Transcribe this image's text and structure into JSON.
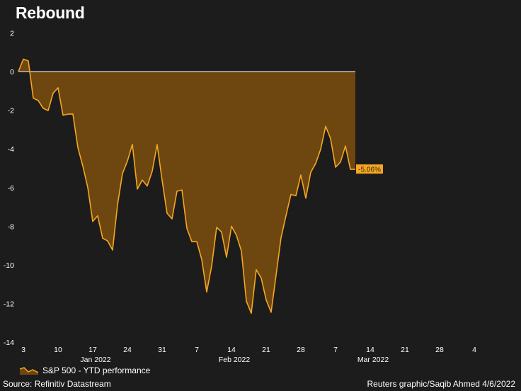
{
  "title": "Rebound",
  "legend": {
    "label": "S&P 500 - YTD performance"
  },
  "source": "Source: Refinitiv Datastream",
  "credit": "Reuters graphic/Saqib Ahmed 4/6/2022",
  "colors": {
    "background": "#1c1c1c",
    "line": "#f5a623",
    "fill": "#6e4710",
    "zero_line": "#ffffff",
    "text": "#ffffff"
  },
  "chart_data": {
    "type": "area",
    "ylim": [
      -14,
      2
    ],
    "yticks": [
      2,
      0,
      -2,
      -4,
      -6,
      -8,
      -10,
      -12,
      -14
    ],
    "grid": false,
    "legend_position": "bottom-left",
    "xticks": [
      {
        "label": "3",
        "x": 0
      },
      {
        "label": "10",
        "x": 7
      },
      {
        "label": "17",
        "x": 14
      },
      {
        "label": "24",
        "x": 21
      },
      {
        "label": "31",
        "x": 28
      },
      {
        "label": "7",
        "x": 35
      },
      {
        "label": "14",
        "x": 42
      },
      {
        "label": "21",
        "x": 49
      },
      {
        "label": "28",
        "x": 56
      },
      {
        "label": "7",
        "x": 63
      },
      {
        "label": "14",
        "x": 70
      },
      {
        "label": "21",
        "x": 77
      },
      {
        "label": "28",
        "x": 84
      },
      {
        "label": "4",
        "x": 91
      }
    ],
    "month_labels": [
      {
        "label": "Jan 2022",
        "x": 14
      },
      {
        "label": "Feb 2022",
        "x": 42
      },
      {
        "label": "Mar 2022",
        "x": 70
      }
    ],
    "end_label": "-5.06%",
    "series": [
      {
        "name": "S&P 500 - YTD performance",
        "points": [
          [
            -1,
            0
          ],
          [
            0,
            0.64
          ],
          [
            1,
            0.55
          ],
          [
            2,
            -1.38
          ],
          [
            3,
            -1.5
          ],
          [
            4,
            -1.9
          ],
          [
            5,
            -2.02
          ],
          [
            6,
            -1.12
          ],
          [
            7,
            -0.84
          ],
          [
            8,
            -2.26
          ],
          [
            9,
            -2.2
          ],
          [
            10,
            -2.2
          ],
          [
            11,
            -3.93
          ],
          [
            12,
            -4.89
          ],
          [
            13,
            -6.0
          ],
          [
            14,
            -7.75
          ],
          [
            15,
            -7.46
          ],
          [
            16,
            -8.62
          ],
          [
            17,
            -8.76
          ],
          [
            18,
            -9.23
          ],
          [
            19,
            -6.9
          ],
          [
            20,
            -5.28
          ],
          [
            21,
            -4.63
          ],
          [
            22,
            -3.77
          ],
          [
            23,
            -6.08
          ],
          [
            24,
            -5.61
          ],
          [
            25,
            -5.92
          ],
          [
            26,
            -5.16
          ],
          [
            27,
            -3.78
          ],
          [
            28,
            -5.62
          ],
          [
            29,
            -7.33
          ],
          [
            30,
            -7.62
          ],
          [
            31,
            -6.19
          ],
          [
            32,
            -6.12
          ],
          [
            33,
            -8.11
          ],
          [
            34,
            -8.8
          ],
          [
            35,
            -8.8
          ],
          [
            36,
            -9.72
          ],
          [
            37,
            -11.4
          ],
          [
            38,
            -10.06
          ],
          [
            39,
            -8.06
          ],
          [
            40,
            -8.3
          ],
          [
            41,
            -9.6
          ],
          [
            42,
            -8.0
          ],
          [
            43,
            -8.47
          ],
          [
            44,
            -9.28
          ],
          [
            45,
            -11.87
          ],
          [
            46,
            -12.5
          ],
          [
            47,
            -10.25
          ],
          [
            48,
            -10.68
          ],
          [
            49,
            -11.81
          ],
          [
            50,
            -12.45
          ],
          [
            51,
            -10.53
          ],
          [
            52,
            -8.6
          ],
          [
            53,
            -7.45
          ],
          [
            54,
            -6.36
          ],
          [
            55,
            -6.42
          ],
          [
            56,
            -5.35
          ],
          [
            57,
            -6.55
          ],
          [
            58,
            -5.21
          ],
          [
            59,
            -4.75
          ],
          [
            60,
            -4.02
          ],
          [
            61,
            -2.83
          ],
          [
            62,
            -3.47
          ],
          [
            63,
            -4.95
          ],
          [
            64,
            -4.68
          ],
          [
            65,
            -3.85
          ],
          [
            66,
            -5.06
          ],
          [
            67,
            -5.06
          ]
        ]
      }
    ]
  }
}
